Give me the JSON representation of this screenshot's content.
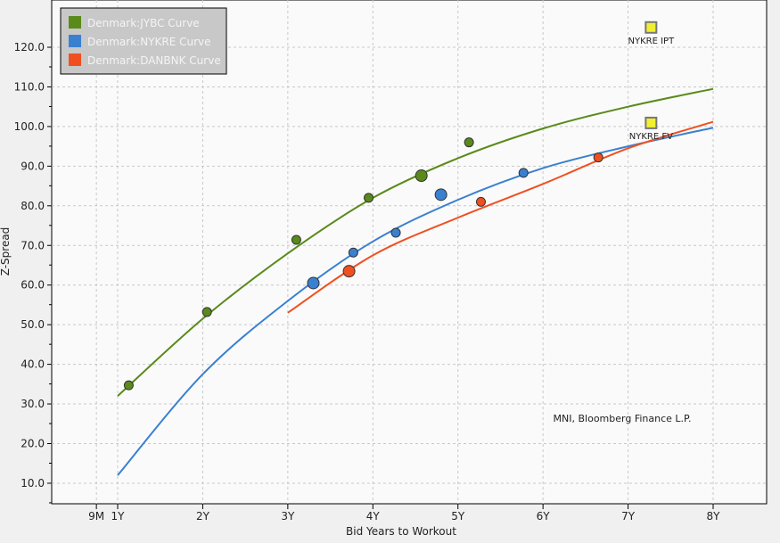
{
  "chart_data": {
    "type": "line",
    "xlabel": "Bid Years to Workout",
    "ylabel": "Z-Spread",
    "xlim": [
      0.0,
      8.6
    ],
    "ylim": [
      5,
      132
    ],
    "grid": true,
    "legend_position": "top-left",
    "x_ticks": [
      {
        "v": 0.75,
        "label": "9M"
      },
      {
        "v": 1,
        "label": "1Y"
      },
      {
        "v": 2,
        "label": "2Y"
      },
      {
        "v": 3,
        "label": "3Y"
      },
      {
        "v": 4,
        "label": "4Y"
      },
      {
        "v": 5,
        "label": "5Y"
      },
      {
        "v": 6,
        "label": "6Y"
      },
      {
        "v": 7,
        "label": "7Y"
      },
      {
        "v": 8,
        "label": "8Y"
      }
    ],
    "y_ticks": [
      {
        "v": 10,
        "label": "10.0"
      },
      {
        "v": 20,
        "label": "20.0"
      },
      {
        "v": 30,
        "label": "30.0"
      },
      {
        "v": 40,
        "label": "40.0"
      },
      {
        "v": 50,
        "label": "50.0"
      },
      {
        "v": 60,
        "label": "60.0"
      },
      {
        "v": 70,
        "label": "70.0"
      },
      {
        "v": 80,
        "label": "80.0"
      },
      {
        "v": 90,
        "label": "90.0"
      },
      {
        "v": 100,
        "label": "100.0"
      },
      {
        "v": 110,
        "label": "110.0"
      },
      {
        "v": 120,
        "label": "120.0"
      }
    ],
    "series": [
      {
        "name": "Denmark:JYBC Curve",
        "color": "#5a8a1a",
        "curve": [
          [
            1,
            32
          ],
          [
            2,
            51.5
          ],
          [
            3,
            68
          ],
          [
            4,
            82
          ],
          [
            5,
            92
          ],
          [
            6,
            99.5
          ],
          [
            7,
            105
          ],
          [
            8,
            109.5
          ]
        ],
        "points": [
          [
            1.13,
            34.7,
            0
          ],
          [
            2.05,
            53.2,
            0
          ],
          [
            3.1,
            71.4,
            0
          ],
          [
            3.95,
            82,
            0
          ],
          [
            4.57,
            87.6,
            1
          ],
          [
            5.13,
            96,
            0
          ]
        ]
      },
      {
        "name": "Denmark:NYKRE Curve",
        "color": "#3a80d0",
        "curve": [
          [
            1,
            12
          ],
          [
            2,
            37.5
          ],
          [
            3,
            56
          ],
          [
            4,
            71
          ],
          [
            5,
            81.5
          ],
          [
            6,
            89.5
          ],
          [
            7,
            95
          ],
          [
            8,
            99.7
          ]
        ],
        "points": [
          [
            3.3,
            60.5,
            1
          ],
          [
            3.77,
            68.2,
            0
          ],
          [
            4.27,
            73.2,
            0
          ],
          [
            4.8,
            82.8,
            1
          ],
          [
            5.77,
            88.3,
            0
          ]
        ]
      },
      {
        "name": "Denmark:DANBNK Curve",
        "color": "#f05020",
        "curve": [
          [
            3,
            53
          ],
          [
            4,
            67.5
          ],
          [
            5,
            77
          ],
          [
            6,
            85.5
          ],
          [
            7,
            94.5
          ],
          [
            8,
            101.2
          ]
        ],
        "points": [
          [
            3.72,
            63.5,
            1
          ],
          [
            5.27,
            81,
            0
          ],
          [
            6.65,
            92.2,
            0
          ]
        ]
      }
    ],
    "annotations": [
      {
        "label": "NYKRE IPT",
        "x": 7.27,
        "y": 125,
        "color": "#f0f030"
      },
      {
        "label": "NYKRE FV",
        "x": 7.27,
        "y": 100.9,
        "color": "#f0f030"
      }
    ],
    "source_note": "MNI, Bloomberg Finance L.P."
  }
}
